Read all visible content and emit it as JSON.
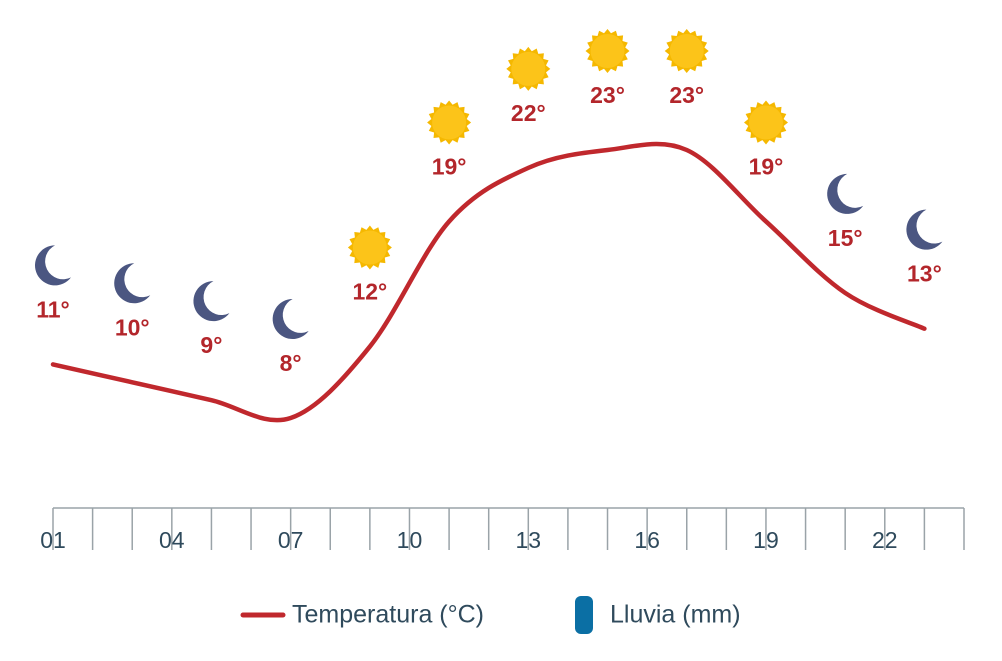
{
  "chart_data": {
    "type": "line",
    "x": [
      1,
      3,
      5,
      7,
      9,
      11,
      13,
      15,
      17,
      19,
      21,
      23
    ],
    "xlim": [
      1,
      24
    ],
    "xticks": [
      {
        "value": 1,
        "label": "01"
      },
      {
        "value": 4,
        "label": "04"
      },
      {
        "value": 7,
        "label": "07"
      },
      {
        "value": 10,
        "label": "10"
      },
      {
        "value": 13,
        "label": "13"
      },
      {
        "value": 16,
        "label": "16"
      },
      {
        "value": 19,
        "label": "19"
      },
      {
        "value": 22,
        "label": "22"
      }
    ],
    "minor_xticks": [
      2,
      3,
      5,
      6,
      8,
      9,
      11,
      12,
      14,
      15,
      17,
      18,
      20,
      21,
      23,
      24
    ],
    "icons": [
      "moon",
      "moon",
      "moon",
      "moon",
      "sun",
      "sun",
      "sun",
      "sun",
      "sun",
      "sun",
      "moon",
      "moon"
    ],
    "series": [
      {
        "name": "Temperatura (°C)",
        "color": "#c0282d",
        "values": [
          11,
          10,
          9,
          8,
          12,
          19,
          22,
          23,
          23,
          19,
          15,
          13
        ],
        "value_labels": [
          "11°",
          "10°",
          "9°",
          "8°",
          "12°",
          "19°",
          "22°",
          "23°",
          "23°",
          "19°",
          "15°",
          "13°"
        ]
      },
      {
        "name": "Lluvia (mm)",
        "color": "#0b6fa4",
        "values": [
          0,
          0,
          0,
          0,
          0,
          0,
          0,
          0,
          0,
          0,
          0,
          0
        ]
      }
    ]
  }
}
